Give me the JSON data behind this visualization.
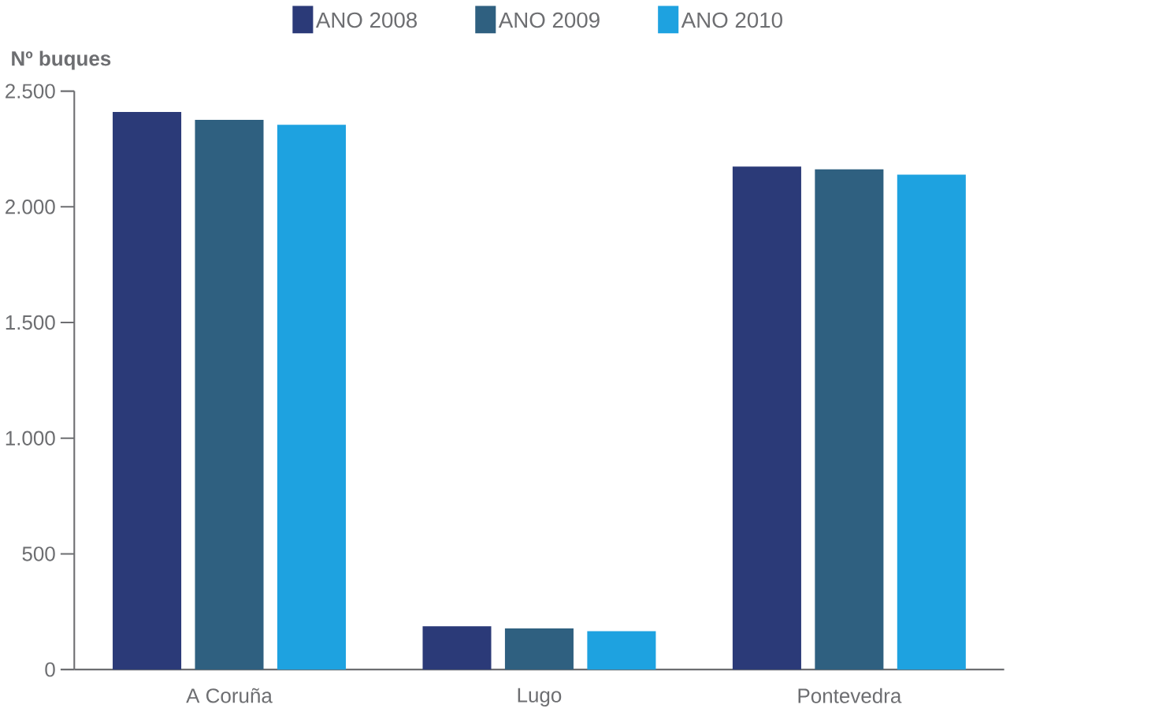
{
  "chart_data": {
    "type": "bar",
    "ylabel": "**Nº buques**",
    "categories": [
      "A Coruña",
      "Lugo",
      "Pontevedra"
    ],
    "series": [
      {
        "name": "ANO 2008",
        "color": "#2b3a78",
        "values": [
          2410,
          187,
          2174
        ]
      },
      {
        "name": "ANO 2009",
        "color": "#2f6080",
        "values": [
          2376,
          178,
          2162
        ]
      },
      {
        "name": "ANO 2010",
        "color": "#1ea2e0",
        "values": [
          2355,
          166,
          2139
        ]
      }
    ],
    "ylim": [
      0,
      2500
    ],
    "yticks": [
      {
        "value": 0,
        "label": "0"
      },
      {
        "value": 500,
        "label": "500"
      },
      {
        "value": 1000,
        "label": "1.000"
      },
      {
        "value": 1500,
        "label": "1.500"
      },
      {
        "value": 2000,
        "label": "2.000"
      },
      {
        "value": 2500,
        "label": "2.500"
      }
    ],
    "legend": "top",
    "grid": false
  }
}
